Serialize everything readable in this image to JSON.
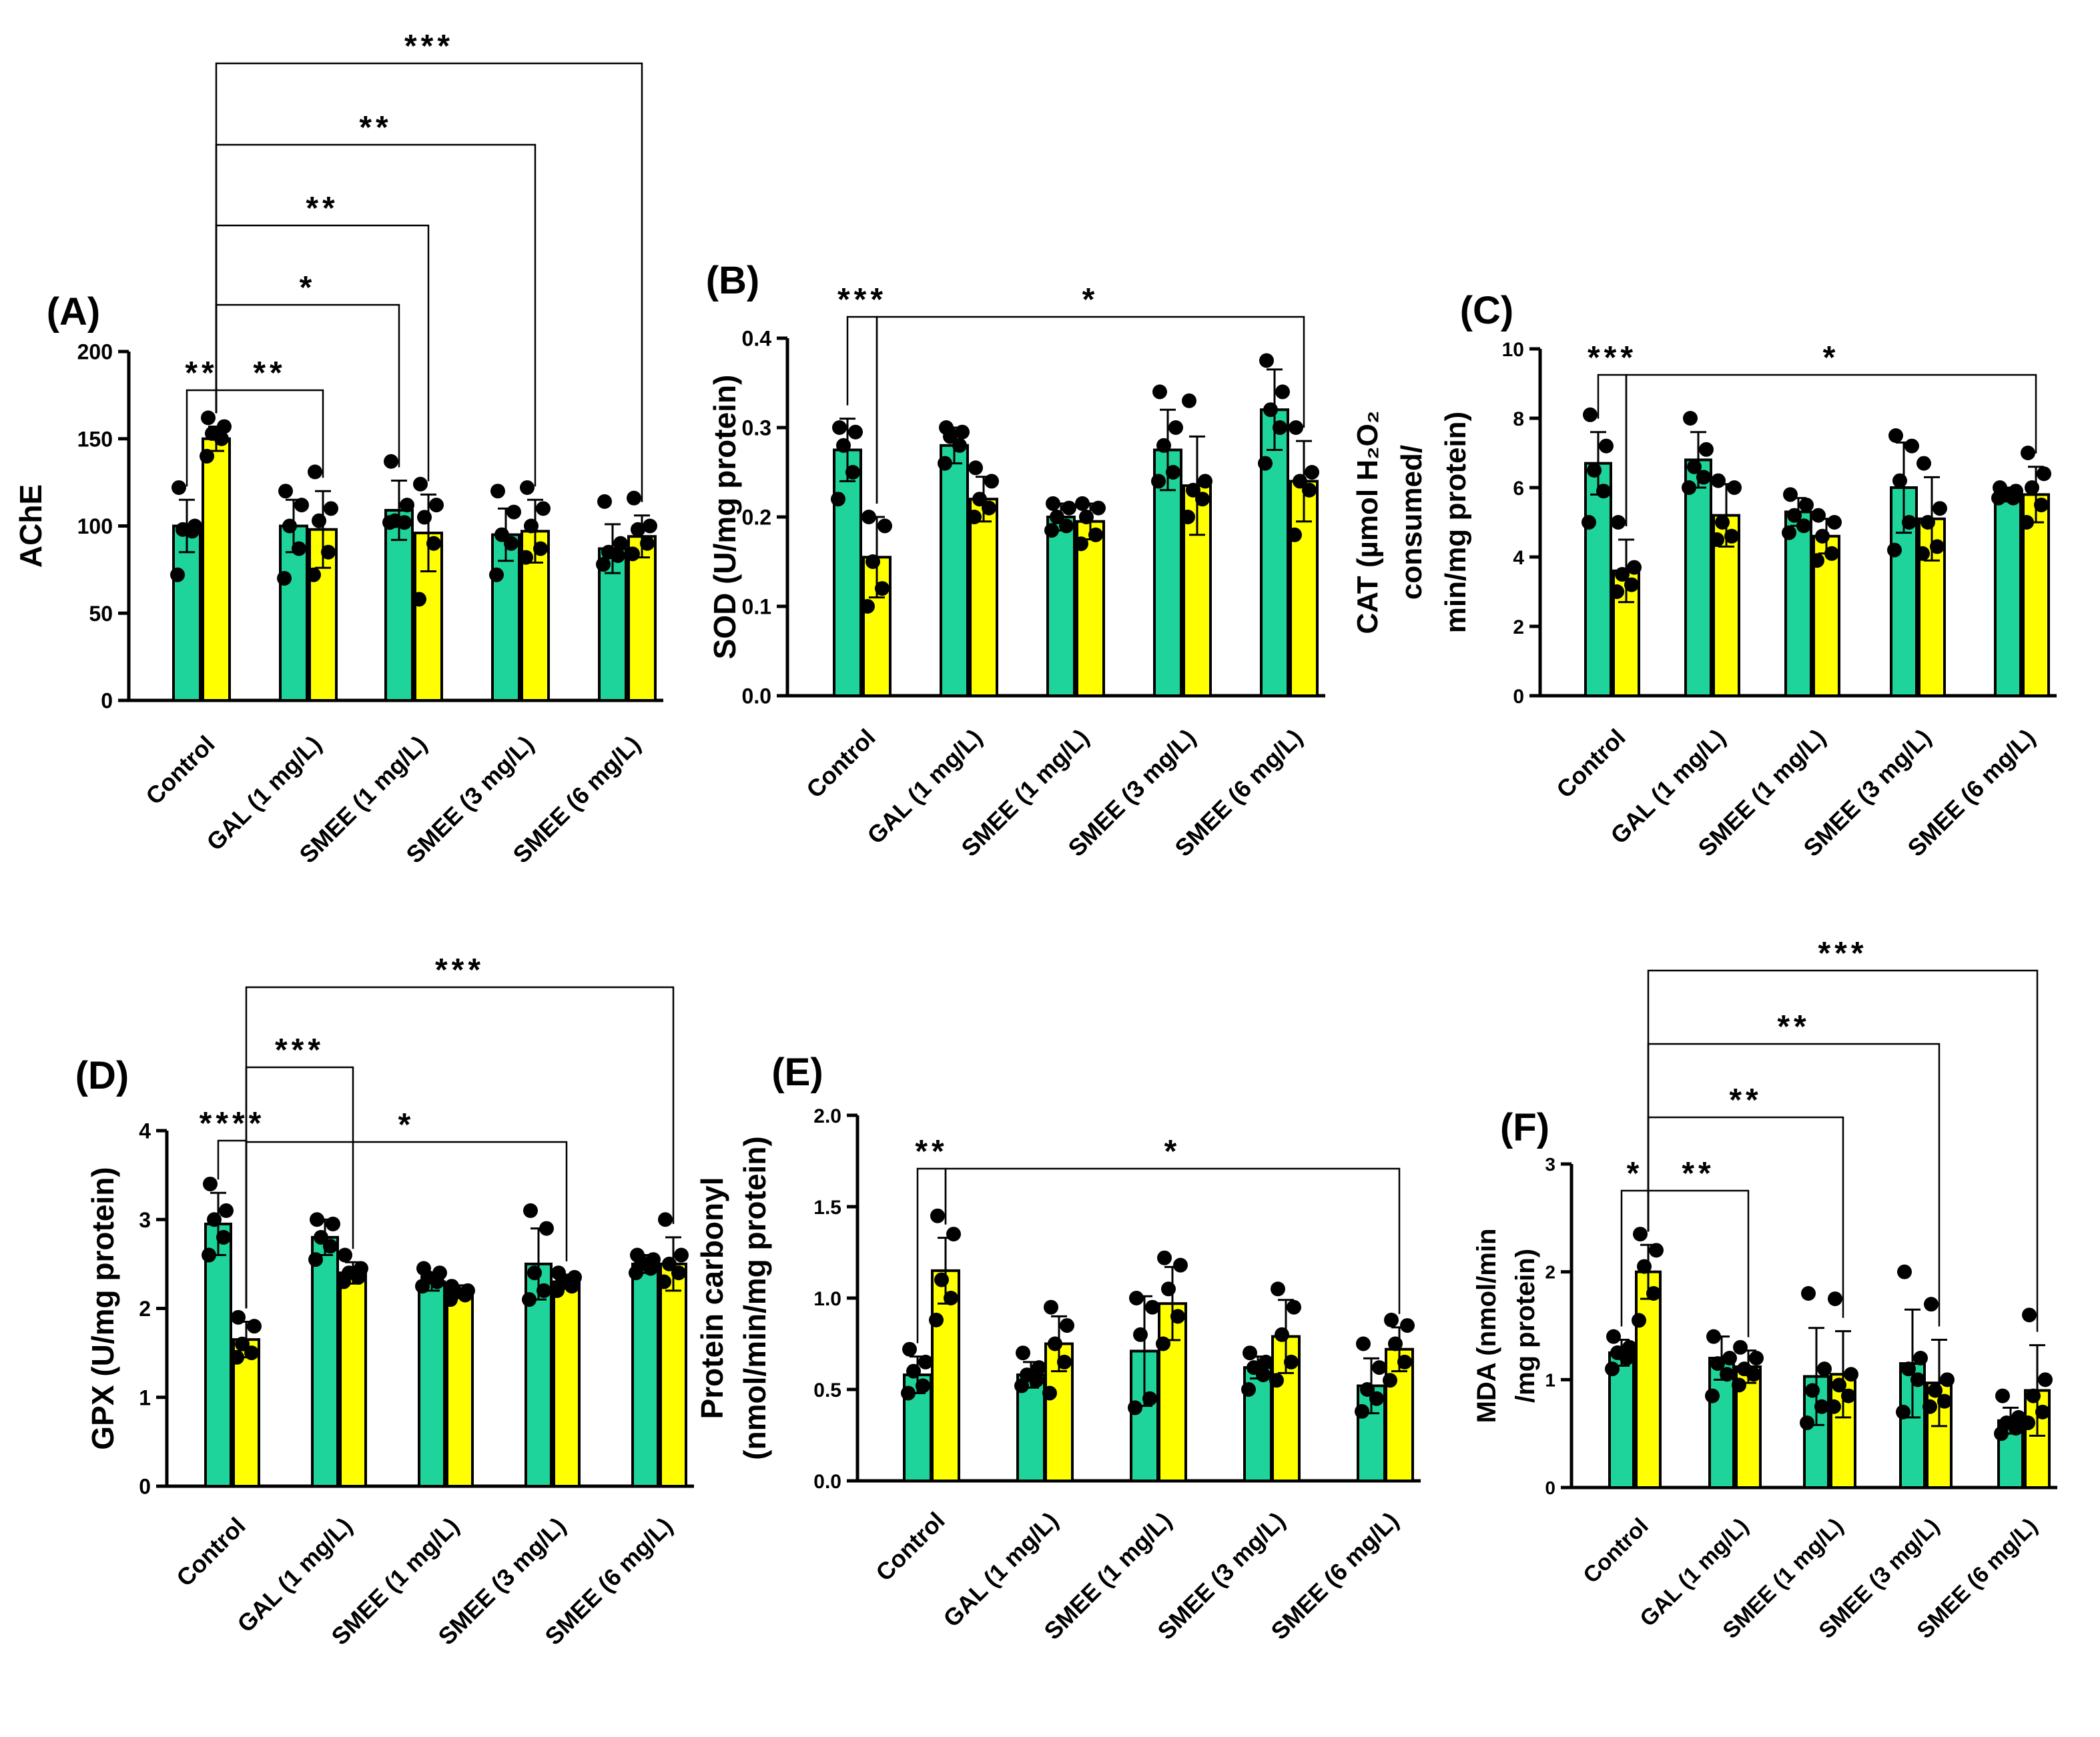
{
  "figure": {
    "colors": {
      "control_bar": "#1ED49B",
      "treated_bar": "#FFFF00",
      "ink": "#000000"
    },
    "categories": [
      "Control",
      "GAL (1 mg/L)",
      "SMEE (1 mg/L)",
      "SMEE (3 mg/L)",
      "SMEE (6 mg/L)"
    ]
  },
  "chart_data": [
    {
      "type": "bar",
      "panel_label": "(A)",
      "title": "",
      "xlabel": "",
      "ylabel": "AChE",
      "ylim": [
        0,
        200
      ],
      "yticks": [
        "0",
        "50",
        "100",
        "150",
        "200"
      ],
      "categories": [
        "Control",
        "GAL (1 mg/L)",
        "SMEE (1 mg/L)",
        "SMEE (3 mg/L)",
        "SMEE (6 mg/L)"
      ],
      "series": [
        {
          "name": "green",
          "values": [
            100,
            100,
            109,
            95,
            87
          ],
          "errors": [
            15,
            15,
            17,
            15,
            14
          ],
          "points": [
            [
              122,
              100,
              98,
              97,
              72
            ],
            [
              120,
              112,
              100,
              87,
              70
            ],
            [
              137,
              112,
              103,
              102,
              102
            ],
            [
              120,
              108,
              95,
              90,
              72
            ],
            [
              114,
              90,
              85,
              83,
              78
            ]
          ]
        },
        {
          "name": "yellow",
          "values": [
            150,
            98,
            96,
            97,
            94
          ],
          "errors": [
            7,
            22,
            22,
            18,
            12
          ],
          "points": [
            [
              162,
              157,
              153,
              150,
              140
            ],
            [
              131,
              110,
              103,
              85,
              72
            ],
            [
              124,
              112,
              105,
              90,
              58
            ],
            [
              122,
              110,
              100,
              87,
              82
            ],
            [
              116,
              100,
              98,
              90,
              84
            ]
          ]
        }
      ],
      "brackets": [
        {
          "from": [
            0,
            0
          ],
          "to": [
            0,
            1
          ],
          "label": "**"
        },
        {
          "from": [
            0,
            1
          ],
          "to": [
            1,
            1
          ],
          "label": "**"
        },
        {
          "from": [
            0,
            1
          ],
          "to": [
            2,
            0
          ],
          "label": "*"
        },
        {
          "from": [
            0,
            1
          ],
          "to": [
            2,
            1
          ],
          "label": "**"
        },
        {
          "from": [
            0,
            1
          ],
          "to": [
            3,
            1
          ],
          "label": "**"
        },
        {
          "from": [
            0,
            1
          ],
          "to": [
            4,
            1
          ],
          "label": "***"
        }
      ]
    },
    {
      "type": "bar",
      "panel_label": "(B)",
      "title": "",
      "xlabel": "",
      "ylabel": "SOD (U/mg protein)",
      "ylim": [
        0,
        0.4
      ],
      "yticks": [
        "0.0",
        "0.1",
        "0.2",
        "0.3",
        "0.4"
      ],
      "categories": [
        "Control",
        "GAL (1 mg/L)",
        "SMEE (1 mg/L)",
        "SMEE (3 mg/L)",
        "SMEE (6 mg/L)"
      ],
      "series": [
        {
          "name": "green",
          "values": [
            0.275,
            0.28,
            0.2,
            0.275,
            0.32
          ],
          "errors": [
            0.035,
            0.02,
            0.015,
            0.045,
            0.045
          ],
          "points": [
            [
              0.3,
              0.295,
              0.28,
              0.25,
              0.22
            ],
            [
              0.3,
              0.295,
              0.29,
              0.28,
              0.26
            ],
            [
              0.215,
              0.21,
              0.2,
              0.19,
              0.185
            ],
            [
              0.34,
              0.3,
              0.28,
              0.25,
              0.24
            ],
            [
              0.375,
              0.34,
              0.32,
              0.3,
              0.26
            ]
          ]
        },
        {
          "name": "yellow",
          "values": [
            0.155,
            0.22,
            0.195,
            0.235,
            0.24
          ],
          "errors": [
            0.045,
            0.025,
            0.02,
            0.055,
            0.045
          ],
          "points": [
            [
              0.2,
              0.19,
              0.15,
              0.12,
              0.1
            ],
            [
              0.255,
              0.24,
              0.22,
              0.21,
              0.2
            ],
            [
              0.215,
              0.21,
              0.2,
              0.18,
              0.17
            ],
            [
              0.33,
              0.24,
              0.23,
              0.22,
              0.2
            ],
            [
              0.3,
              0.25,
              0.24,
              0.23,
              0.18
            ]
          ]
        }
      ],
      "brackets": [
        {
          "from": [
            0,
            0
          ],
          "to": [
            0,
            1
          ],
          "label": "***"
        },
        {
          "from": [
            0,
            1
          ],
          "to": [
            4,
            1
          ],
          "label": "*"
        }
      ]
    },
    {
      "type": "bar",
      "panel_label": "(C)",
      "title": "",
      "xlabel": "",
      "ylabel_lines": [
        "CAT (µmol H₂O₂",
        "consumed/",
        "min/mg protein)"
      ],
      "ylim": [
        0,
        10
      ],
      "yticks": [
        "0",
        "2",
        "4",
        "6",
        "8",
        "10"
      ],
      "categories": [
        "Control",
        "GAL (1 mg/L)",
        "SMEE (1 mg/L)",
        "SMEE (3 mg/L)",
        "SMEE (6 mg/L)"
      ],
      "series": [
        {
          "name": "green",
          "values": [
            6.7,
            6.8,
            5.3,
            6.0,
            5.8
          ],
          "errors": [
            0.9,
            0.8,
            0.4,
            1.3,
            0.2
          ],
          "points": [
            [
              8.1,
              7.2,
              6.5,
              5.9,
              5.0
            ],
            [
              8.0,
              7.1,
              6.6,
              6.3,
              6.0
            ],
            [
              5.8,
              5.5,
              5.2,
              4.9,
              4.7
            ],
            [
              7.5,
              7.2,
              6.2,
              5.0,
              4.2
            ],
            [
              6.0,
              5.9,
              5.8,
              5.7,
              5.7
            ]
          ]
        },
        {
          "name": "yellow",
          "values": [
            3.6,
            5.2,
            4.6,
            5.1,
            5.8
          ],
          "errors": [
            0.9,
            0.9,
            0.5,
            1.2,
            0.8
          ],
          "points": [
            [
              5.0,
              3.7,
              3.5,
              3.2,
              3.0
            ],
            [
              6.2,
              6.0,
              5.0,
              4.6,
              4.5
            ],
            [
              5.2,
              5.0,
              4.6,
              4.1,
              3.9
            ],
            [
              6.7,
              5.4,
              5.0,
              4.3,
              4.1
            ],
            [
              7.0,
              6.4,
              6.0,
              5.5,
              5.0
            ]
          ]
        }
      ],
      "brackets": [
        {
          "from": [
            0,
            0
          ],
          "to": [
            0,
            1
          ],
          "label": "***"
        },
        {
          "from": [
            0,
            1
          ],
          "to": [
            4,
            1
          ],
          "label": "*"
        }
      ]
    },
    {
      "type": "bar",
      "panel_label": "(D)",
      "title": "",
      "xlabel": "",
      "ylabel": "GPX  (U/mg protein)",
      "ylim": [
        0,
        4
      ],
      "yticks": [
        "0",
        "1",
        "2",
        "3",
        "4"
      ],
      "categories": [
        "Control",
        "GAL (1 mg/L)",
        "SMEE (1 mg/L)",
        "SMEE (3 mg/L)",
        "SMEE (6 mg/L)"
      ],
      "series": [
        {
          "name": "green",
          "values": [
            2.95,
            2.8,
            2.3,
            2.5,
            2.5
          ],
          "errors": [
            0.35,
            0.2,
            0.1,
            0.4,
            0.1
          ],
          "points": [
            [
              3.4,
              3.1,
              3.0,
              2.8,
              2.6
            ],
            [
              3.0,
              2.95,
              2.8,
              2.7,
              2.55
            ],
            [
              2.45,
              2.4,
              2.35,
              2.3,
              2.25
            ],
            [
              3.1,
              2.9,
              2.4,
              2.2,
              2.1
            ],
            [
              2.6,
              2.55,
              2.5,
              2.45,
              2.4
            ]
          ]
        },
        {
          "name": "yellow",
          "values": [
            1.65,
            2.4,
            2.2,
            2.3,
            2.5
          ],
          "errors": [
            0.2,
            0.12,
            0.06,
            0.08,
            0.3
          ],
          "points": [
            [
              1.9,
              1.8,
              1.6,
              1.5,
              1.45
            ],
            [
              2.6,
              2.45,
              2.4,
              2.35,
              2.3
            ],
            [
              2.25,
              2.2,
              2.18,
              2.15,
              2.1
            ],
            [
              2.4,
              2.35,
              2.3,
              2.25,
              2.2
            ],
            [
              3.0,
              2.6,
              2.5,
              2.4,
              2.3
            ]
          ]
        }
      ],
      "brackets": [
        {
          "from": [
            0,
            0
          ],
          "to": [
            0,
            1
          ],
          "label": "****"
        },
        {
          "from": [
            0,
            1
          ],
          "to": [
            1,
            1
          ],
          "label": "***"
        },
        {
          "from": [
            0,
            1
          ],
          "to": [
            3,
            1
          ],
          "label": "*"
        },
        {
          "from": [
            0,
            1
          ],
          "to": [
            4,
            1
          ],
          "label": "***"
        }
      ]
    },
    {
      "type": "bar",
      "panel_label": "(E)",
      "title": "",
      "xlabel": "",
      "ylabel_lines": [
        "Protein carbonyl",
        "(nmol/min/mg protein)"
      ],
      "ylim": [
        0,
        2.0
      ],
      "yticks": [
        "0.0",
        "0.5",
        "1.0",
        "1.5",
        "2.0"
      ],
      "categories": [
        "Control",
        "GAL (1 mg/L)",
        "SMEE (1 mg/L)",
        "SMEE (3 mg/L)",
        "SMEE (6 mg/L)"
      ],
      "series": [
        {
          "name": "green",
          "values": [
            0.58,
            0.58,
            0.71,
            0.62,
            0.52
          ],
          "errors": [
            0.1,
            0.07,
            0.3,
            0.06,
            0.15
          ],
          "points": [
            [
              0.72,
              0.65,
              0.6,
              0.52,
              0.48
            ],
            [
              0.7,
              0.62,
              0.58,
              0.55,
              0.52
            ],
            [
              1.0,
              0.95,
              0.8,
              0.45,
              0.4
            ],
            [
              0.7,
              0.65,
              0.62,
              0.58,
              0.5
            ],
            [
              0.75,
              0.62,
              0.5,
              0.45,
              0.38
            ]
          ]
        },
        {
          "name": "yellow",
          "values": [
            1.15,
            0.75,
            0.97,
            0.79,
            0.72
          ],
          "errors": [
            0.18,
            0.15,
            0.2,
            0.2,
            0.12
          ],
          "points": [
            [
              1.45,
              1.35,
              1.1,
              1.0,
              0.88
            ],
            [
              0.95,
              0.85,
              0.75,
              0.65,
              0.48
            ],
            [
              1.22,
              1.18,
              1.05,
              0.9,
              0.75
            ],
            [
              1.05,
              0.95,
              0.8,
              0.65,
              0.55
            ],
            [
              0.88,
              0.85,
              0.75,
              0.65,
              0.55
            ]
          ]
        }
      ],
      "brackets": [
        {
          "from": [
            0,
            0
          ],
          "to": [
            0,
            1
          ],
          "label": "**"
        },
        {
          "from": [
            0,
            1
          ],
          "to": [
            4,
            1
          ],
          "label": "*"
        }
      ]
    },
    {
      "type": "bar",
      "panel_label": "(F)",
      "title": "",
      "xlabel": "",
      "ylabel_lines": [
        "MDA (nmol/min",
        "/mg protein)"
      ],
      "ylim": [
        0,
        3
      ],
      "yticks": [
        "0",
        "1",
        "2",
        "3"
      ],
      "categories": [
        "Control",
        "GAL (1 mg/L)",
        "SMEE (1 mg/L)",
        "SMEE (3 mg/L)",
        "SMEE (6 mg/L)"
      ],
      "series": [
        {
          "name": "green",
          "values": [
            1.25,
            1.2,
            1.03,
            1.15,
            0.62
          ],
          "errors": [
            0.12,
            0.2,
            0.45,
            0.5,
            0.12
          ],
          "points": [
            [
              1.4,
              1.3,
              1.25,
              1.2,
              1.1
            ],
            [
              1.4,
              1.2,
              1.15,
              1.05,
              0.85
            ],
            [
              1.8,
              1.1,
              0.9,
              0.75,
              0.6
            ],
            [
              2.0,
              1.2,
              1.1,
              1.0,
              0.7
            ],
            [
              0.85,
              0.65,
              0.6,
              0.55,
              0.5
            ]
          ]
        },
        {
          "name": "yellow",
          "values": [
            2.0,
            1.12,
            1.05,
            0.97,
            0.9
          ],
          "errors": [
            0.25,
            0.15,
            0.4,
            0.4,
            0.42
          ],
          "points": [
            [
              2.35,
              2.2,
              2.05,
              1.8,
              1.55
            ],
            [
              1.3,
              1.2,
              1.1,
              1.05,
              0.95
            ],
            [
              1.75,
              1.05,
              0.95,
              0.85,
              0.75
            ],
            [
              1.7,
              1.0,
              0.9,
              0.8,
              0.75
            ],
            [
              1.6,
              1.0,
              0.85,
              0.7,
              0.6
            ]
          ]
        }
      ],
      "brackets": [
        {
          "from": [
            0,
            0
          ],
          "to": [
            0,
            1
          ],
          "label": "*"
        },
        {
          "from": [
            0,
            1
          ],
          "to": [
            1,
            1
          ],
          "label": "**"
        },
        {
          "from": [
            0,
            1
          ],
          "to": [
            2,
            1
          ],
          "label": "**"
        },
        {
          "from": [
            0,
            1
          ],
          "to": [
            3,
            1
          ],
          "label": "**"
        },
        {
          "from": [
            0,
            1
          ],
          "to": [
            4,
            1
          ],
          "label": "***"
        }
      ]
    }
  ]
}
